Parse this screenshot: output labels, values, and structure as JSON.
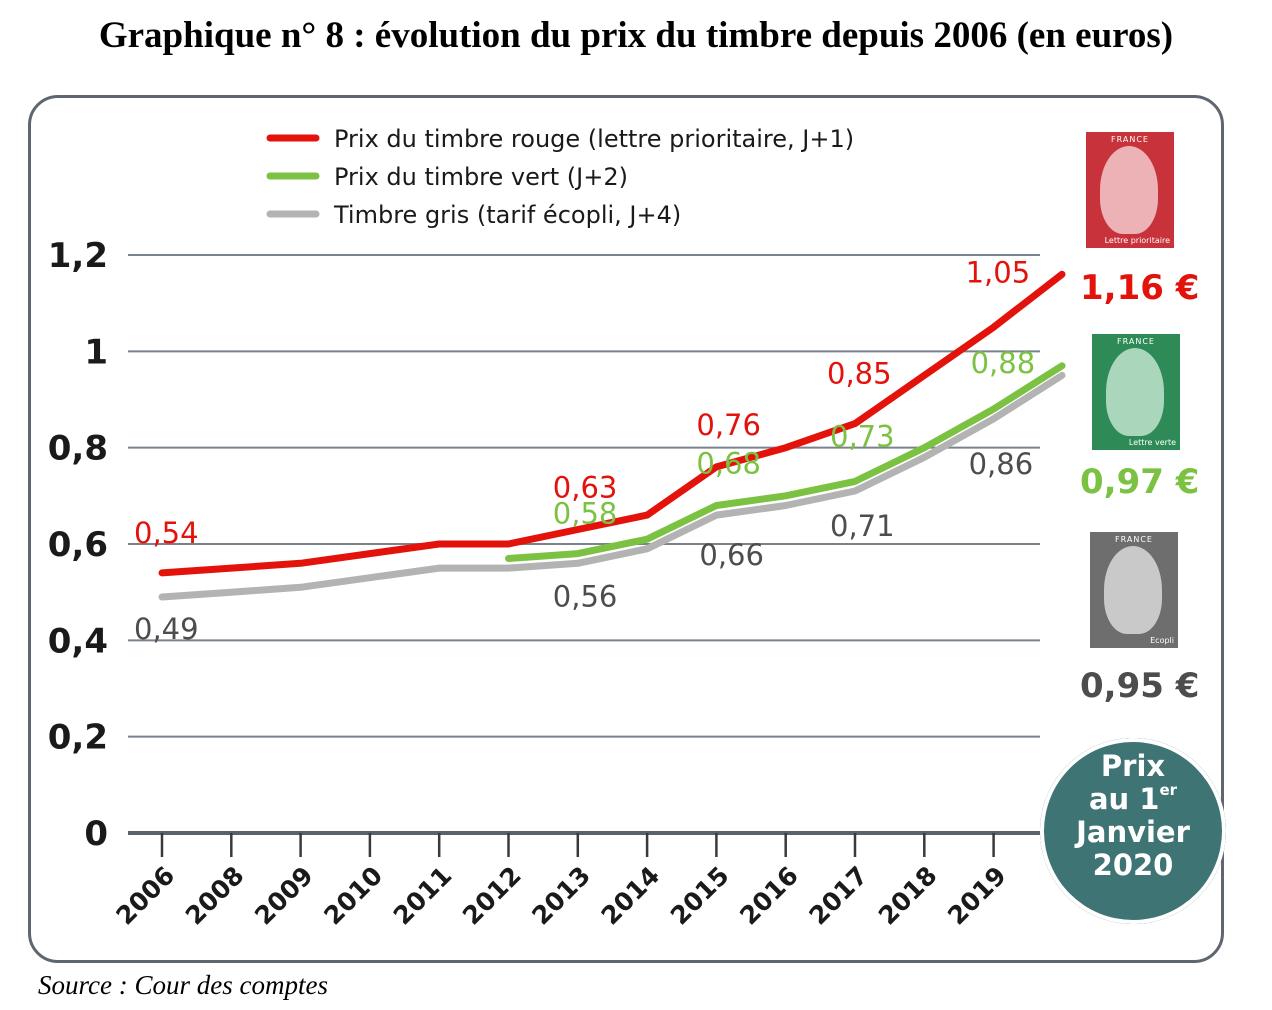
{
  "title": "Graphique n° 8 : évolution du prix du timbre depuis 2006 (en euros)",
  "source": "Source : Cour des comptes",
  "chart_data": {
    "type": "line",
    "categories": [
      "2006",
      "2008",
      "2009",
      "2010",
      "2011",
      "2012",
      "2013",
      "2014",
      "2015",
      "2016",
      "2017",
      "2018",
      "2019"
    ],
    "y_tick_labels": [
      "0",
      "0,2",
      "0,4",
      "0,6",
      "0,8",
      "1",
      "1,2"
    ],
    "y_ticks": [
      0,
      0.2,
      0.4,
      0.6,
      0.8,
      1,
      1.2
    ],
    "ylim": [
      0,
      1.2
    ],
    "final_point_label": "2020",
    "legend_position": "top",
    "series": [
      {
        "name": "Prix du timbre rouge (lettre prioritaire, J+1)",
        "color": "#e3120b",
        "x": [
          "2006",
          "2008",
          "2009",
          "2010",
          "2011",
          "2012",
          "2013",
          "2014",
          "2015",
          "2016",
          "2017",
          "2018",
          "2019",
          "2020"
        ],
        "values": [
          0.54,
          0.55,
          0.56,
          0.58,
          0.6,
          0.6,
          0.63,
          0.66,
          0.76,
          0.8,
          0.85,
          0.95,
          1.05,
          1.16
        ],
        "data_labels": [
          {
            "x": "2006",
            "text": "0,54"
          },
          {
            "x": "2013",
            "text": "0,63"
          },
          {
            "x": "2015",
            "text": "0,76"
          },
          {
            "x": "2017",
            "text": "0,85"
          },
          {
            "x": "2019",
            "text": "1,05"
          }
        ]
      },
      {
        "name": "Prix du timbre vert (J+2)",
        "color": "#7cc242",
        "x": [
          "2012",
          "2013",
          "2014",
          "2015",
          "2016",
          "2017",
          "2018",
          "2019",
          "2020"
        ],
        "values": [
          0.57,
          0.58,
          0.61,
          0.68,
          0.7,
          0.73,
          0.8,
          0.88,
          0.97
        ],
        "data_labels": [
          {
            "x": "2013",
            "text": "0,58"
          },
          {
            "x": "2015",
            "text": "0,68"
          },
          {
            "x": "2017",
            "text": "0,73"
          },
          {
            "x": "2019",
            "text": "0,88"
          }
        ]
      },
      {
        "name": "Timbre gris (tarif écopli, J+4)",
        "color": "#b3b3b3",
        "label_color": "#4d4d4d",
        "x": [
          "2006",
          "2008",
          "2009",
          "2010",
          "2011",
          "2012",
          "2013",
          "2014",
          "2015",
          "2016",
          "2017",
          "2018",
          "2019",
          "2020"
        ],
        "values": [
          0.49,
          0.5,
          0.51,
          0.53,
          0.55,
          0.55,
          0.56,
          0.59,
          0.66,
          0.68,
          0.71,
          0.78,
          0.86,
          0.95
        ],
        "data_labels": [
          {
            "x": "2006",
            "text": "0,49"
          },
          {
            "x": "2013",
            "text": "0,56"
          },
          {
            "x": "2015",
            "text": "0,66"
          },
          {
            "x": "2017",
            "text": "0,71"
          },
          {
            "x": "2019",
            "text": "0,86"
          }
        ]
      }
    ]
  },
  "stamps": [
    {
      "country": "FRANCE",
      "mention": "Lettre prioritaire",
      "price": "1,16 €",
      "color": "#c8323a",
      "icon": "red-stamp-icon"
    },
    {
      "country": "FRANCE",
      "mention": "Lettre verte",
      "price": "0,97 €",
      "color": "#2e8b57",
      "icon": "green-stamp-icon"
    },
    {
      "country": "FRANCE",
      "mention": "Ecopli",
      "price": "0,95 €",
      "color": "#6e6e6e",
      "icon": "grey-stamp-icon"
    }
  ],
  "badge": {
    "line1": "Prix",
    "line2": "au 1",
    "line2_sup": "er",
    "line3": "Janvier",
    "line4": "2020"
  }
}
